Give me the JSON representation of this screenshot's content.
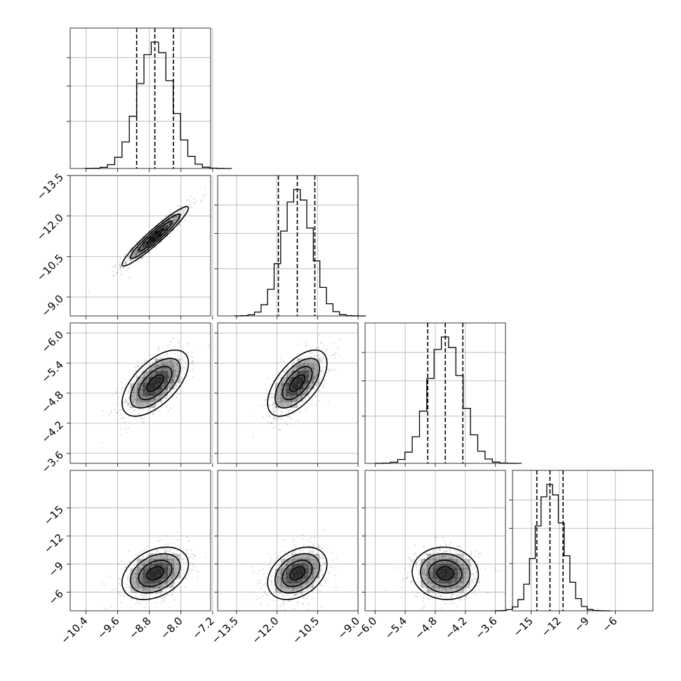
{
  "chart_data": {
    "type": "corner",
    "parameters": [
      {
        "ticks": [
          -10.4,
          -9.6,
          -8.8,
          -8.0,
          -7.2
        ],
        "range": [
          -10.8,
          -7.25
        ],
        "mean": -8.65,
        "sd": 0.42,
        "quantiles": [
          -9.12,
          -8.66,
          -8.19
        ]
      },
      {
        "ticks": [
          -13.5,
          -12.0,
          -10.5,
          -9.0
        ],
        "range": [
          -14.2,
          -9.0
        ],
        "mean": -11.25,
        "sd": 0.55,
        "quantiles": [
          -11.95,
          -11.25,
          -10.6
        ]
      },
      {
        "ticks": [
          -6.0,
          -5.4,
          -4.8,
          -4.2,
          -3.6
        ],
        "range": [
          -6.2,
          -3.4
        ],
        "mean": -4.6,
        "sd": 0.33,
        "quantiles": [
          -4.95,
          -4.6,
          -4.25
        ]
      },
      {
        "ticks": [
          -15,
          -12,
          -9,
          -6
        ],
        "range": [
          -17.0,
          -2.0
        ],
        "mean": -13.0,
        "sd": 1.4,
        "quantiles": [
          -14.4,
          -13.0,
          -11.6
        ]
      }
    ],
    "tick_labels": {
      "x": [
        [
          "−10.4",
          "−9.6",
          "−8.8",
          "−8.0",
          "−7.2"
        ],
        [
          "−13.5",
          "−12.0",
          "−10.5",
          "−9.0"
        ],
        [
          "−6.0",
          "−5.4",
          "−4.8",
          "−4.2",
          "−3.6"
        ],
        [
          "−15",
          "−12",
          "−9",
          "−6"
        ]
      ],
      "y": [
        null,
        [
          "−9.0",
          "−10.5",
          "−12.0",
          "−13.5"
        ],
        [
          "−3.6",
          "−4.2",
          "−4.8",
          "−5.4",
          "−6.0"
        ],
        [
          "−6",
          "−9",
          "−12",
          "−15"
        ]
      ]
    },
    "correlations": {
      "1-0": 0.95,
      "2-0": 0.6,
      "2-1": 0.6,
      "3-0": 0.35,
      "3-1": 0.35,
      "3-2": -0.05
    },
    "histogram_bins": 20,
    "contour_levels_sigma": [
      0.5,
      1.0,
      1.5,
      2.0
    ],
    "grid": true,
    "legend": "none",
    "colors": {
      "hist": "#000000",
      "contour": "#000000",
      "scatter": "#000000"
    }
  }
}
